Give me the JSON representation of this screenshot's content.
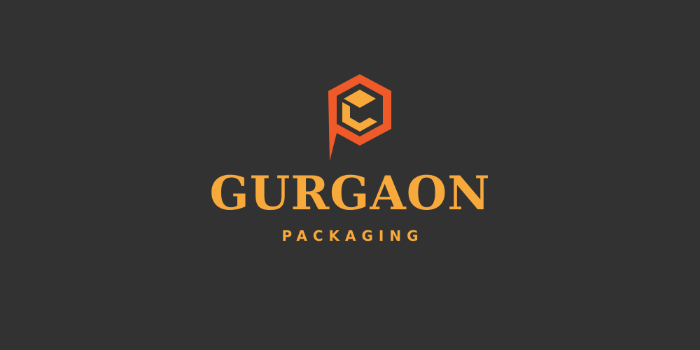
{
  "brand": {
    "name": "GURGAON",
    "tagline": "PACKAGING",
    "icon": "hexagon-pin-box-logo-icon"
  },
  "colors": {
    "background": "#323232",
    "text": "#f8a93b",
    "pin": "#f05a28",
    "hexagon_inner": "#323232",
    "box": "#f8a93b"
  }
}
